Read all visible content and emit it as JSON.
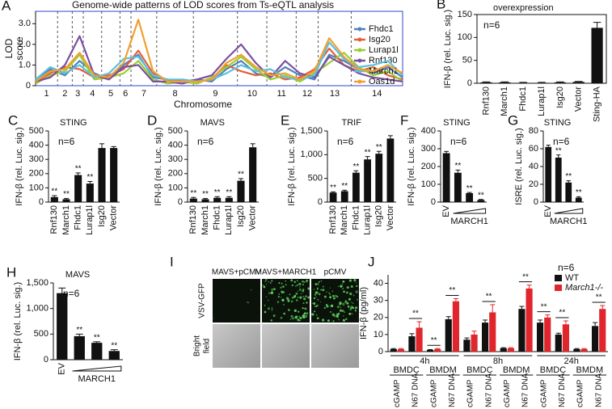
{
  "chart_data": [
    {
      "type": "line",
      "label": "A",
      "title": "Genome-wide patterns of LOD scores from Ts-eQTL analysis",
      "ylabel": [
        "LOD",
        "score"
      ],
      "xlabel": "Chromosome",
      "chromosomes": [
        "1",
        "2",
        "3",
        "4",
        "5",
        "6",
        "7",
        "8",
        "9",
        "10",
        "11",
        "12",
        "13",
        "14"
      ],
      "chromosome_bounds": [
        0,
        6,
        10,
        13,
        18,
        23,
        26,
        33,
        43,
        55,
        63,
        71,
        77,
        86,
        100
      ],
      "xlim": [
        0,
        100
      ],
      "ylim": [
        0,
        3.6
      ],
      "yticks": [
        0,
        {
          "value": 1,
          "label": "1.0"
        },
        {
          "value": 2,
          "label": "2.0"
        },
        {
          "value": 3,
          "label": "3.0"
        }
      ],
      "x": [
        0,
        4,
        8,
        12,
        16,
        20,
        24,
        28,
        32,
        36,
        40,
        44,
        48,
        52,
        56,
        60,
        64,
        68,
        72,
        76,
        80,
        84,
        88,
        92,
        96,
        100
      ],
      "series": [
        {
          "name": "Fhdc1",
          "color": "#4f81bd",
          "values": [
            0.3,
            0.8,
            0.5,
            1.2,
            0.6,
            0.3,
            1.0,
            1.5,
            0.4,
            0.3,
            0.2,
            0.3,
            0.2,
            0.8,
            1.2,
            0.6,
            0.4,
            0.9,
            0.5,
            0.3,
            1.5,
            1.2,
            0.8,
            0.6,
            0.9,
            0.4
          ]
        },
        {
          "name": "Isg20",
          "color": "#e0603a",
          "values": [
            0.2,
            0.6,
            0.9,
            0.8,
            0.4,
            0.5,
            0.8,
            1.7,
            0.6,
            0.2,
            0.3,
            0.2,
            0.3,
            1.0,
            0.7,
            0.5,
            0.6,
            0.3,
            0.4,
            0.8,
            1.8,
            1.0,
            0.7,
            0.9,
            0.5,
            0.3
          ]
        },
        {
          "name": "Lurap1l",
          "color": "#9acd32",
          "values": [
            0.1,
            0.5,
            0.7,
            1.5,
            0.3,
            0.4,
            0.6,
            1.2,
            0.3,
            0.1,
            0.2,
            0.1,
            0.4,
            0.9,
            1.4,
            0.8,
            0.3,
            0.5,
            0.2,
            0.6,
            1.1,
            1.6,
            0.9,
            0.5,
            0.7,
            0.2
          ]
        },
        {
          "name": "Rnf130",
          "color": "#7b4fa0",
          "values": [
            0.2,
            0.4,
            1.0,
            2.4,
            0.5,
            0.3,
            0.9,
            1.0,
            0.2,
            0.2,
            0.1,
            0.3,
            0.5,
            1.3,
            2.0,
            1.1,
            0.4,
            1.2,
            0.6,
            0.4,
            1.4,
            1.0,
            0.6,
            0.4,
            0.3,
            0.2
          ]
        },
        {
          "name": "March1",
          "color": "#5bc0de",
          "values": [
            0.3,
            0.9,
            0.6,
            1.0,
            0.4,
            0.6,
            1.3,
            1.4,
            0.5,
            0.3,
            0.3,
            0.2,
            0.3,
            0.6,
            1.0,
            0.7,
            0.8,
            0.4,
            0.3,
            0.5,
            2.1,
            1.3,
            0.9,
            1.0,
            1.2,
            0.5
          ]
        },
        {
          "name": "Oas1d",
          "color": "#f0a030",
          "values": [
            0.2,
            0.7,
            0.8,
            1.6,
            0.5,
            0.4,
            1.1,
            3.2,
            0.7,
            0.2,
            0.2,
            0.2,
            0.3,
            1.1,
            1.5,
            0.9,
            0.5,
            0.6,
            0.3,
            0.7,
            2.3,
            1.4,
            0.8,
            0.7,
            1.0,
            0.6
          ]
        }
      ]
    },
    {
      "type": "bar",
      "label": "B",
      "title": "overexpression",
      "n_label": "n=6",
      "frame": true,
      "ylabel": "IFN-β (rel. Luc. sig.)",
      "color": "#111111",
      "categories": [
        "Rnf130",
        "March1",
        "Fhdc1",
        "Lurap1l",
        "Isg20",
        "Vector",
        "Sting-HA"
      ],
      "values": [
        2,
        2,
        1,
        1,
        2,
        3,
        121
      ],
      "errors": [
        1,
        1,
        1,
        1,
        1,
        1,
        12
      ],
      "ylim": [
        0,
        150
      ],
      "yticks": [
        0,
        50,
        100,
        150
      ]
    },
    {
      "type": "bar",
      "label": "C",
      "title": "STING",
      "n_label": "n=6",
      "ylabel": "IFN-β (rel. Luc. sig.)",
      "color": "#111111",
      "categories": [
        "Rnf130",
        "March1",
        "Fhdc1",
        "Lurap1l",
        "Isg20",
        "Vector"
      ],
      "values": [
        35,
        20,
        190,
        130,
        380,
        380
      ],
      "errors": [
        10,
        5,
        15,
        15,
        30,
        10
      ],
      "significance": [
        "**",
        "**",
        "**",
        "**",
        null,
        null
      ],
      "ylim": [
        0,
        500
      ],
      "yticks": [
        0,
        100,
        200,
        300,
        400,
        500
      ]
    },
    {
      "type": "bar",
      "label": "D",
      "title": "MAVS",
      "n_label": "n=6",
      "ylabel": "IFN-β (rel. Luc. sig.)",
      "color": "#111111",
      "categories": [
        "Rnf130",
        "March1",
        "Fhdc1",
        "Lurap1l",
        "Isg20",
        "Vector"
      ],
      "values": [
        25,
        20,
        30,
        30,
        150,
        385
      ],
      "errors": [
        8,
        5,
        8,
        8,
        15,
        25
      ],
      "significance": [
        "**",
        "**",
        "**",
        "**",
        "**",
        null
      ],
      "ylim": [
        0,
        500
      ],
      "yticks": [
        0,
        100,
        200,
        300,
        400,
        500
      ]
    },
    {
      "type": "bar",
      "label": "E",
      "title": "TRIF",
      "n_label": "n=6",
      "ylabel": "IFN-β (rel. Luc. sig.)",
      "color": "#111111",
      "categories": [
        "Rnf130",
        "March1",
        "Fhdc1",
        "Lurap1l",
        "Isg20",
        "Vector"
      ],
      "values": [
        200,
        230,
        620,
        900,
        1020,
        1340
      ],
      "errors": [
        15,
        20,
        40,
        60,
        50,
        60
      ],
      "significance": [
        "**",
        "**",
        "**",
        "**",
        "**",
        null
      ],
      "ylim": [
        0,
        1500
      ],
      "yticks": [
        0,
        500,
        {
          "value": 1000,
          "label": "1,000"
        },
        {
          "value": 1500,
          "label": "1,500"
        }
      ]
    },
    {
      "type": "bar",
      "label": "F",
      "title": "STING",
      "n_label": "n=6",
      "ylabel": "IFN-β (rel. Luc. sig.)",
      "color": "#111111",
      "group_label": "MARCH1",
      "categories": [
        "EV",
        null,
        null,
        null
      ],
      "values": [
        275,
        165,
        50,
        12
      ],
      "errors": [
        10,
        15,
        4,
        3
      ],
      "significance": [
        null,
        "**",
        "**",
        "**"
      ],
      "ylim": [
        0,
        400
      ],
      "yticks": [
        0,
        100,
        200,
        300,
        400
      ]
    },
    {
      "type": "bar",
      "label": "G",
      "title": "STING",
      "n_label": "n=6",
      "ylabel": "ISRE (rel. Luc. sig.)",
      "color": "#111111",
      "group_label": "MARCH1",
      "categories": [
        "EV",
        null,
        null,
        null
      ],
      "values": [
        62,
        50,
        22,
        5
      ],
      "errors": [
        2,
        3,
        2,
        1
      ],
      "significance": [
        null,
        "**",
        "**",
        "**"
      ],
      "ylim": [
        0,
        80
      ],
      "yticks": [
        0,
        20,
        40,
        60,
        80
      ]
    },
    {
      "type": "bar",
      "label": "H",
      "title": "MAVS",
      "n_label": "n=6",
      "ylabel": "IFN-β (rel. Luc. sig.)",
      "color": "#111111",
      "group_label": "MARCH1",
      "categories": [
        "EV",
        null,
        null,
        null
      ],
      "values": [
        1300,
        460,
        330,
        170
      ],
      "errors": [
        100,
        40,
        20,
        25
      ],
      "significance": [
        null,
        "**",
        "**",
        "**"
      ],
      "ylim": [
        0,
        1500
      ],
      "yticks": [
        0,
        500,
        {
          "value": 1000,
          "label": "1,000"
        },
        {
          "value": 1500,
          "label": "1,500"
        }
      ]
    },
    {
      "type": "grouped_bar",
      "label": "J",
      "n_label": "n=6",
      "ylabel": "IFN-β (pg/ml)",
      "categories": [
        "cGAMP",
        "N67 DNA",
        "cGAMP",
        "N67 DNA",
        "cGAMP",
        "N67 DNA",
        "cGAMP",
        "N67 DNA",
        "cGAMP",
        "N67 DNA",
        "cGAMP",
        "N67 DNA"
      ],
      "time_groups": [
        "4h",
        "8h",
        "24h"
      ],
      "cell_groups": [
        "BMDC",
        "BMDM",
        "BMDC",
        "BMDM",
        "BMDC",
        "BMDM"
      ],
      "series": [
        {
          "name": "WT",
          "color": "#111111",
          "values": [
            1.5,
            9,
            1,
            19,
            7,
            17,
            2,
            25,
            17,
            10,
            1.5,
            15
          ],
          "errors": [
            0.3,
            1.5,
            0.2,
            1.5,
            1,
            1.5,
            0.3,
            1.5,
            1.5,
            0.8,
            0.3,
            2
          ]
        },
        {
          "name": "March1-/-",
          "color": "#e0262c",
          "values": [
            1.5,
            14,
            1.5,
            29.5,
            10,
            23,
            2,
            37,
            20,
            16,
            1.5,
            25
          ],
          "errors": [
            0.3,
            3.5,
            0.3,
            1.5,
            2,
            4.5,
            0.3,
            2,
            1.5,
            2,
            0.3,
            2
          ]
        }
      ],
      "significance": [
        null,
        "**",
        "**",
        "**",
        null,
        "**",
        null,
        "**",
        "**",
        "**",
        null,
        "**"
      ],
      "ylim": [
        0,
        45
      ],
      "yticks": [
        0,
        10,
        20,
        30,
        40
      ]
    }
  ],
  "image_panel": {
    "label": "I",
    "columns": [
      "MAVS+pCMV",
      "MAVS+MARCH1",
      "pCMV"
    ],
    "rows": [
      [
        "VSV-GFP"
      ],
      [
        "Bright",
        "field"
      ]
    ]
  }
}
